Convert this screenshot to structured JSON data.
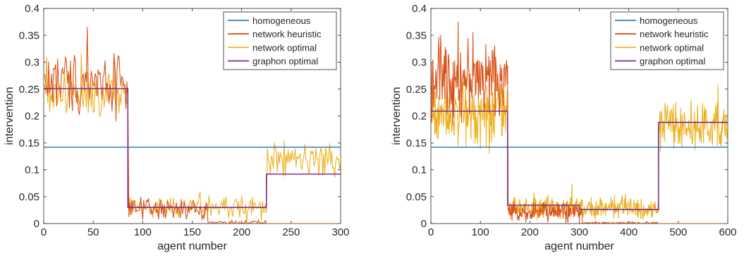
{
  "chart_data": [
    {
      "type": "line",
      "xlabel": "agent number",
      "ylabel": "intervention",
      "xlim": [
        0,
        300
      ],
      "ylim": [
        0,
        0.4
      ],
      "xticks": [
        0,
        50,
        100,
        150,
        200,
        250,
        300
      ],
      "yticks": [
        0,
        0.05,
        0.1,
        0.15,
        0.2,
        0.25,
        0.3,
        0.35,
        0.4
      ],
      "ytick_labels": [
        "0",
        "0.05",
        "0.1",
        "0.15",
        "0.2",
        "0.25",
        "0.3",
        "0.35",
        "0.4"
      ],
      "legend_position": "top-right",
      "grid": false,
      "n_agents": 300,
      "series": [
        {
          "name": "homogeneous",
          "color": "#2e7ebf",
          "kind": "constant",
          "value": 0.142
        },
        {
          "name": "network heuristic",
          "color": "#d95319",
          "kind": "noisy",
          "segments": [
            [
              0,
              85,
              0.265,
              0.05
            ],
            [
              85,
              165,
              0.025,
              0.018
            ],
            [
              165,
              225,
              0.002,
              0.003
            ],
            [
              225,
              300,
              0.0,
              0.0
            ]
          ],
          "peaks": [
            [
              44,
              0.365
            ],
            [
              22,
              0.31
            ],
            [
              76,
              0.312
            ]
          ]
        },
        {
          "name": "network optimal",
          "color": "#edb120",
          "kind": "noisy",
          "segments": [
            [
              0,
              85,
              0.245,
              0.045
            ],
            [
              85,
              225,
              0.03,
              0.02
            ],
            [
              225,
              300,
              0.118,
              0.028
            ]
          ],
          "peaks": [
            [
              38,
              0.315
            ],
            [
              72,
              0.3
            ],
            [
              158,
              0.058
            ],
            [
              264,
              0.147
            ]
          ]
        },
        {
          "name": "graphon optimal",
          "color": "#7e2f8e",
          "kind": "steps",
          "steps": [
            [
              0,
              85,
              0.251
            ],
            [
              85,
              225,
              0.03
            ],
            [
              225,
              300,
              0.092
            ]
          ]
        }
      ]
    },
    {
      "type": "line",
      "xlabel": "agent number",
      "ylabel": "intervention",
      "xlim": [
        0,
        600
      ],
      "ylim": [
        0,
        0.4
      ],
      "xticks": [
        0,
        100,
        200,
        300,
        400,
        500,
        600
      ],
      "yticks": [
        0,
        0.05,
        0.1,
        0.15,
        0.2,
        0.25,
        0.3,
        0.35,
        0.4
      ],
      "ytick_labels": [
        "0",
        "0.05",
        "0.1",
        "0.15",
        "0.2",
        "0.25",
        "0.3",
        "0.35",
        "0.4"
      ],
      "legend_position": "top-right",
      "grid": false,
      "n_agents": 600,
      "series": [
        {
          "name": "homogeneous",
          "color": "#2e7ebf",
          "kind": "constant",
          "value": 0.142
        },
        {
          "name": "network heuristic",
          "color": "#d95319",
          "kind": "noisy",
          "segments": [
            [
              0,
              155,
              0.27,
              0.055
            ],
            [
              155,
              305,
              0.022,
              0.016
            ],
            [
              305,
              460,
              0.001,
              0.002
            ],
            [
              460,
              600,
              0.0,
              0.0
            ]
          ],
          "peaks": [
            [
              55,
              0.375
            ],
            [
              85,
              0.355
            ],
            [
              20,
              0.35
            ]
          ]
        },
        {
          "name": "network optimal",
          "color": "#edb120",
          "kind": "noisy",
          "segments": [
            [
              0,
              155,
              0.21,
              0.05
            ],
            [
              155,
              460,
              0.03,
              0.018
            ],
            [
              460,
              600,
              0.18,
              0.035
            ]
          ],
          "peaks": [
            [
              285,
              0.073
            ],
            [
              580,
              0.258
            ],
            [
              495,
              0.225
            ]
          ]
        },
        {
          "name": "graphon optimal",
          "color": "#7e2f8e",
          "kind": "steps",
          "steps": [
            [
              0,
              155,
              0.209
            ],
            [
              155,
              300,
              0.034
            ],
            [
              300,
              460,
              0.026
            ],
            [
              460,
              600,
              0.188
            ]
          ]
        }
      ]
    }
  ]
}
